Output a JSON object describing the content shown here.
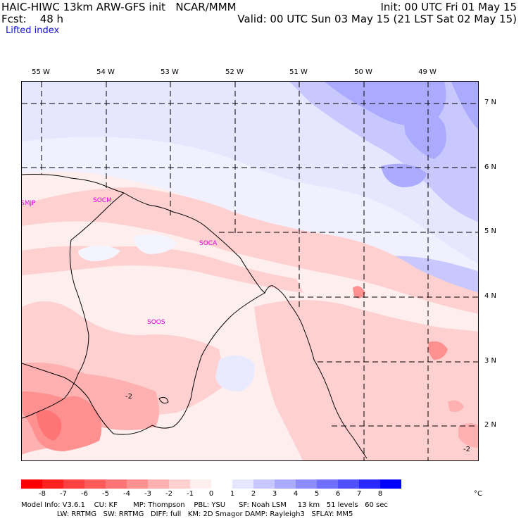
{
  "header": {
    "title_left": "HAIC-HIWC 13km ARW-GFS init   NCAR/MMM",
    "fcst": "Fcst:    48 h",
    "init": "Init: 00 UTC Fri 01 May 15",
    "valid": "Valid: 00 UTC Sun 03 May 15 (21 LST Sat 02 May 15)",
    "field": "Lifted index"
  },
  "longitudes": [
    "55 W",
    "54 W",
    "53 W",
    "52 W",
    "51 W",
    "50 W",
    "49 W"
  ],
  "latitudes": [
    "7 N",
    "6 N",
    "5 N",
    "4 N",
    "3 N",
    "2 N"
  ],
  "stations": [
    "SMJP",
    "SOCM",
    "SOCA",
    "SOOS"
  ],
  "contour_label": "-2",
  "colorbar": {
    "colors": [
      "#ff0000",
      "#ff2020",
      "#ff4040",
      "#ff5a5a",
      "#ff7474",
      "#ff9090",
      "#ffb0b0",
      "#ffd0d0",
      "#ffeeee",
      "#ffffff",
      "#e6e6ff",
      "#c8c8ff",
      "#aaaaff",
      "#8c8cff",
      "#6e6eff",
      "#5050ff",
      "#2828ff",
      "#0000ff"
    ],
    "ticks": [
      "-8",
      "-7",
      "-6",
      "-5",
      "-4",
      "-3",
      "-2",
      "-1",
      "0",
      "1",
      "2",
      "3",
      "4",
      "5",
      "6",
      "7",
      "8"
    ],
    "unit": "°C"
  },
  "footer": {
    "line1": "Model Info: V3.6.1    CU: KF       MP: Thompson    PBL: YSU      SF: Noah LSM     13 km   51 levels   60 sec",
    "line2": "                LW: RRTMG   SW: RRTMG   DIFF: full   KM: 2D Smagor DAMP: Rayleigh3   SFLAY: MM5"
  }
}
